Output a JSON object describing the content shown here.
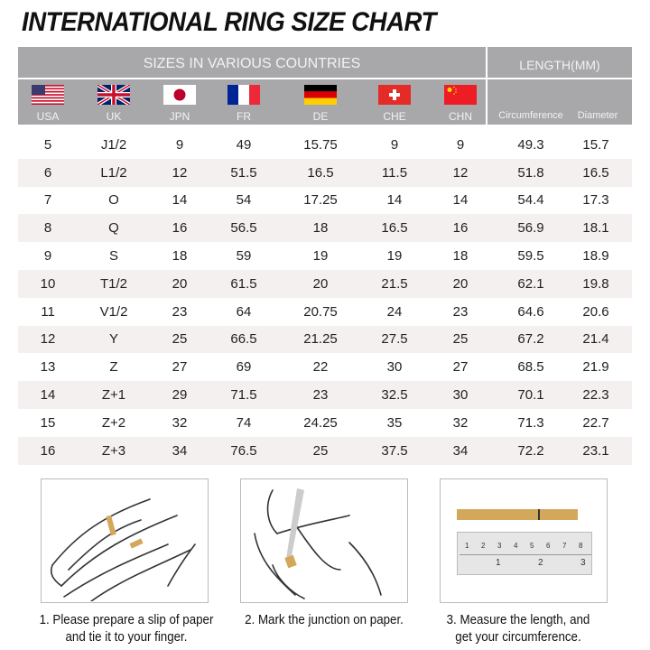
{
  "title": "INTERNATIONAL RING SIZE CHART",
  "header": {
    "sizes_label": "SIZES IN VARIOUS COUNTRIES",
    "length_label": "LENGTH(MM)",
    "countries": [
      {
        "code": "USA",
        "flag": "us-flag"
      },
      {
        "code": "UK",
        "flag": "uk-flag"
      },
      {
        "code": "JPN",
        "flag": "japan-flag"
      },
      {
        "code": "FR",
        "flag": "france-flag"
      },
      {
        "code": "DE",
        "flag": "germany-flag"
      },
      {
        "code": "CHE",
        "flag": "switzerland-flag"
      },
      {
        "code": "CHN",
        "flag": "china-flag"
      }
    ],
    "length_columns": [
      "Circumference",
      "Diameter"
    ]
  },
  "rows": [
    [
      "5",
      "J1/2",
      "9",
      "49",
      "15.75",
      "9",
      "9",
      "49.3",
      "15.7"
    ],
    [
      "6",
      "L1/2",
      "12",
      "51.5",
      "16.5",
      "11.5",
      "12",
      "51.8",
      "16.5"
    ],
    [
      "7",
      "O",
      "14",
      "54",
      "17.25",
      "14",
      "14",
      "54.4",
      "17.3"
    ],
    [
      "8",
      "Q",
      "16",
      "56.5",
      "18",
      "16.5",
      "16",
      "56.9",
      "18.1"
    ],
    [
      "9",
      "S",
      "18",
      "59",
      "19",
      "19",
      "18",
      "59.5",
      "18.9"
    ],
    [
      "10",
      "T1/2",
      "20",
      "61.5",
      "20",
      "21.5",
      "20",
      "62.1",
      "19.8"
    ],
    [
      "11",
      "V1/2",
      "23",
      "64",
      "20.75",
      "24",
      "23",
      "64.6",
      "20.6"
    ],
    [
      "12",
      "Y",
      "25",
      "66.5",
      "21.25",
      "27.5",
      "25",
      "67.2",
      "21.4"
    ],
    [
      "13",
      "Z",
      "27",
      "69",
      "22",
      "30",
      "27",
      "68.5",
      "21.9"
    ],
    [
      "14",
      "Z+1",
      "29",
      "71.5",
      "23",
      "32.5",
      "30",
      "70.1",
      "22.3"
    ],
    [
      "15",
      "Z+2",
      "32",
      "74",
      "24.25",
      "35",
      "32",
      "71.3",
      "22.7"
    ],
    [
      "16",
      "Z+3",
      "34",
      "76.5",
      "25",
      "37.5",
      "34",
      "72.2",
      "23.1"
    ]
  ],
  "steps": [
    {
      "line1": "1. Please prepare a slip of paper",
      "line2": "and tie it to your finger."
    },
    {
      "line1": "2. Mark the junction on paper.",
      "line2": ""
    },
    {
      "line1": "3. Measure the length, and",
      "line2": "get your circumference."
    }
  ],
  "ruler": {
    "top_marks": [
      "1",
      "2",
      "3",
      "4",
      "5",
      "6",
      "7",
      "8"
    ],
    "bottom_marks": [
      "1",
      "2",
      "3"
    ]
  },
  "colors": {
    "header_bg": "#a8a8aa",
    "alt_row": "#f4f0ef",
    "paper_strip": "#d4a85a"
  }
}
